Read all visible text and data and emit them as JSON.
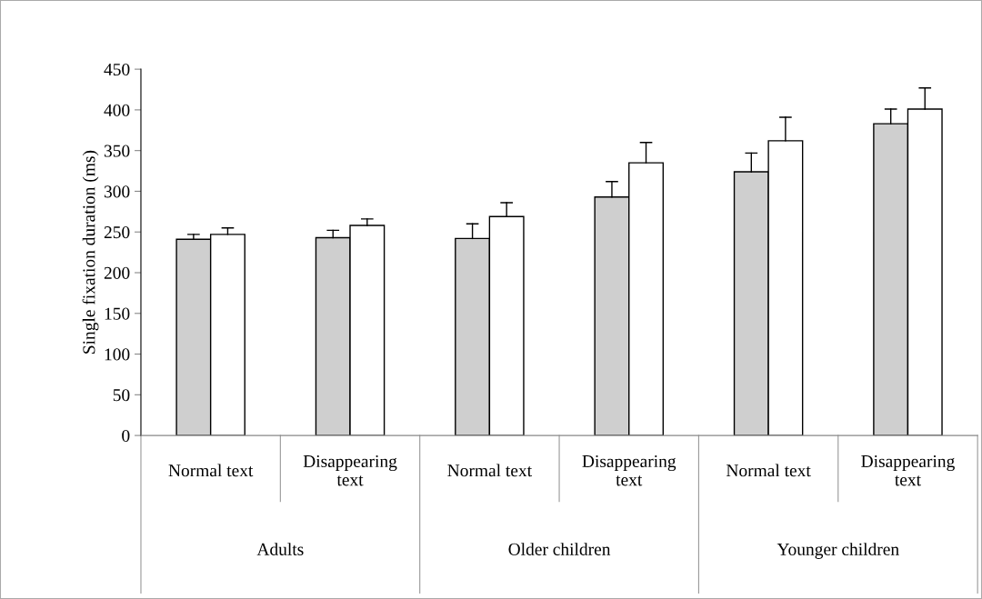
{
  "chart_data": {
    "type": "bar",
    "ylabel": "Single fixation duration (ms)",
    "categories": [
      "Normal text",
      "Disappearing\ntext",
      "Normal text",
      "Disappearing\ntext",
      "Normal text",
      "Disappearing\ntext"
    ],
    "series": [
      {
        "color": "#cfcfcf",
        "values": [
          241,
          243,
          242,
          293,
          324,
          383
        ],
        "errors": [
          [
            241,
            247
          ],
          [
            243,
            252
          ],
          [
            242,
            260
          ],
          [
            293,
            312
          ],
          [
            324,
            347
          ],
          [
            383,
            401
          ]
        ]
      },
      {
        "color": "#ffffff",
        "values": [
          247,
          258,
          269,
          335,
          362,
          401
        ],
        "errors": [
          [
            247,
            255
          ],
          [
            258,
            266
          ],
          [
            269,
            286
          ],
          [
            335,
            360
          ],
          [
            362,
            391
          ],
          [
            401,
            427
          ]
        ]
      }
    ],
    "annotations": [
      "Adults",
      "Older children",
      "Younger children"
    ],
    "ylim": [
      0,
      450
    ],
    "yticks": [
      0,
      50,
      100,
      150,
      200,
      250,
      300,
      350,
      400,
      450
    ],
    "grid": false,
    "legend": false
  }
}
